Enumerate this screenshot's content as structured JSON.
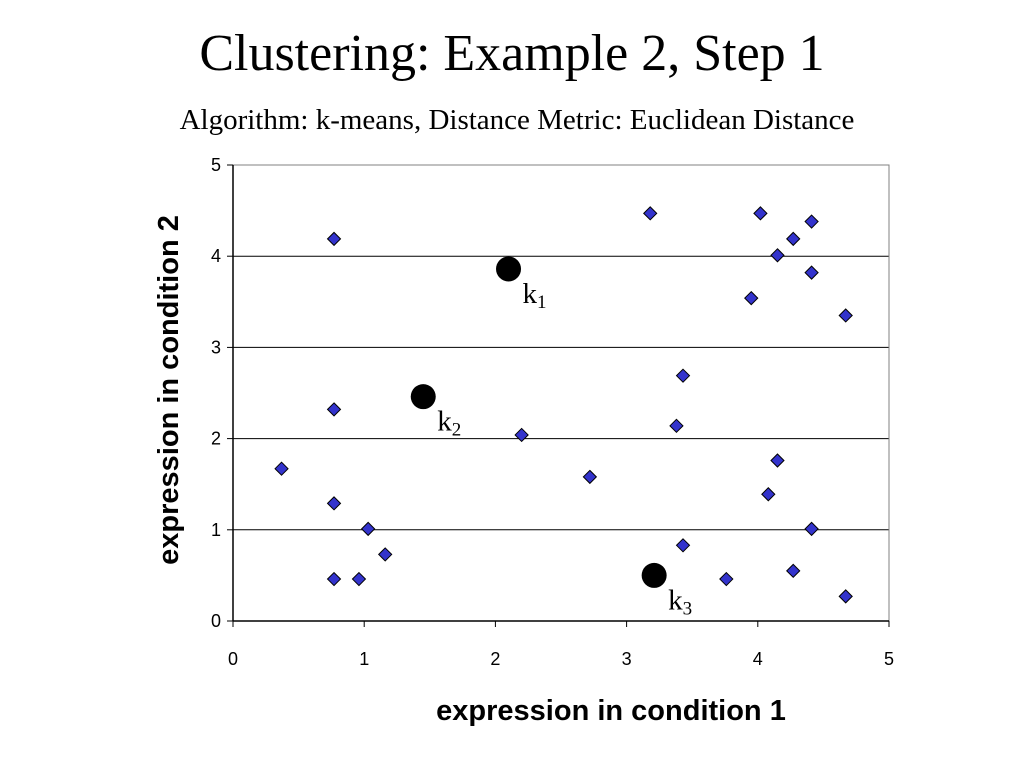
{
  "slide": {
    "title": "Clustering: Example 2, Step 1",
    "subtitle": "Algorithm: k-means, Distance Metric: Euclidean Distance"
  },
  "chart_data": {
    "type": "scatter",
    "xlabel": "expression in condition 1",
    "ylabel": "expression in condition 2",
    "xlim": [
      0,
      5
    ],
    "ylim": [
      0,
      5
    ],
    "xticks": [
      "0",
      "1",
      "2",
      "3",
      "4",
      "5"
    ],
    "yticks": [
      "0",
      "1",
      "2",
      "3",
      "4",
      "5"
    ],
    "grid": "horizontal",
    "colors": {
      "point": "#3333cc",
      "point_stroke": "#000000",
      "centroid": "#000000"
    },
    "points": [
      {
        "x": 0.37,
        "y": 1.67
      },
      {
        "x": 0.77,
        "y": 4.19
      },
      {
        "x": 0.77,
        "y": 2.32
      },
      {
        "x": 0.77,
        "y": 1.29
      },
      {
        "x": 0.77,
        "y": 0.46
      },
      {
        "x": 0.96,
        "y": 0.46
      },
      {
        "x": 1.03,
        "y": 1.01
      },
      {
        "x": 1.16,
        "y": 0.73
      },
      {
        "x": 2.2,
        "y": 2.04
      },
      {
        "x": 2.72,
        "y": 1.58
      },
      {
        "x": 3.18,
        "y": 4.47
      },
      {
        "x": 3.38,
        "y": 2.14
      },
      {
        "x": 3.43,
        "y": 2.69
      },
      {
        "x": 3.43,
        "y": 0.83
      },
      {
        "x": 3.76,
        "y": 0.46
      },
      {
        "x": 3.95,
        "y": 3.54
      },
      {
        "x": 4.02,
        "y": 4.47
      },
      {
        "x": 4.08,
        "y": 1.39
      },
      {
        "x": 4.15,
        "y": 4.01
      },
      {
        "x": 4.15,
        "y": 1.76
      },
      {
        "x": 4.27,
        "y": 4.19
      },
      {
        "x": 4.27,
        "y": 0.55
      },
      {
        "x": 4.41,
        "y": 4.38
      },
      {
        "x": 4.41,
        "y": 3.82
      },
      {
        "x": 4.41,
        "y": 1.01
      },
      {
        "x": 4.67,
        "y": 3.35
      },
      {
        "x": 4.67,
        "y": 0.27
      }
    ],
    "centroids": [
      {
        "label": "k",
        "sub": "1",
        "x": 2.1,
        "y": 3.86
      },
      {
        "label": "k",
        "sub": "2",
        "x": 1.45,
        "y": 2.46
      },
      {
        "label": "k",
        "sub": "3",
        "x": 3.21,
        "y": 0.5
      }
    ]
  }
}
